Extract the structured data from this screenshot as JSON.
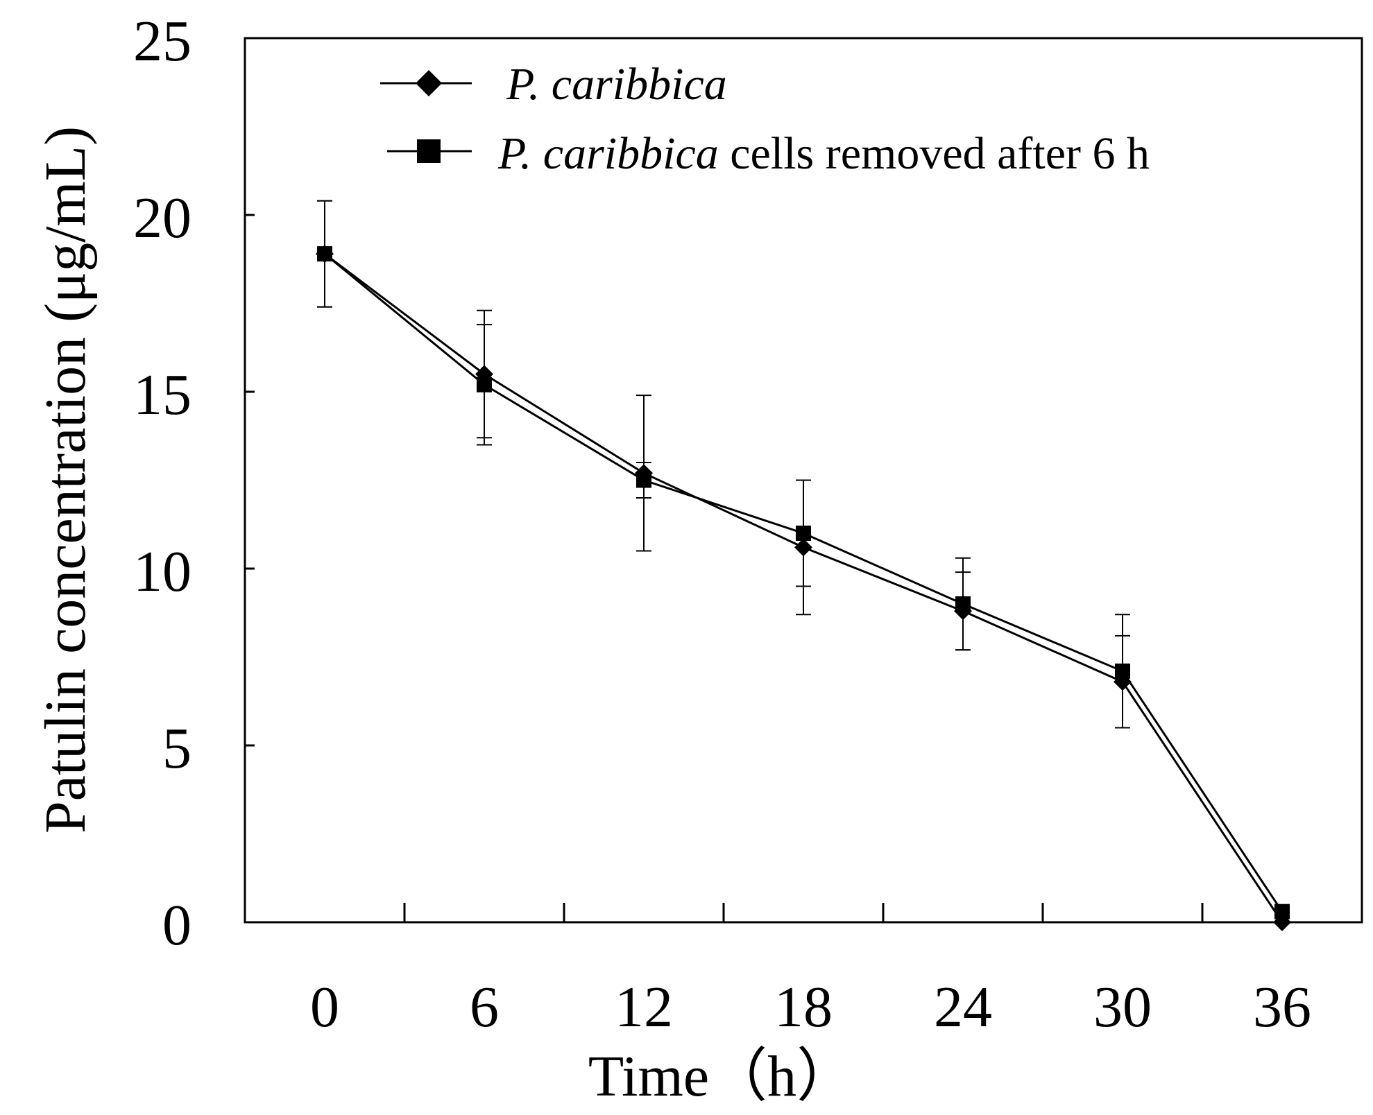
{
  "chart_data": {
    "type": "line",
    "xlabel": "Time（h）",
    "ylabel": "Patulin concentration (μg/mL)",
    "x": [
      0,
      6,
      12,
      18,
      24,
      30,
      36
    ],
    "xticks": [
      "0",
      "6",
      "12",
      "18",
      "24",
      "30",
      "36"
    ],
    "yticks": [
      "0",
      "5",
      "10",
      "15",
      "20",
      "25"
    ],
    "xlim": [
      -3,
      39
    ],
    "ylim": [
      0,
      25
    ],
    "legend_position": "top-right",
    "series": [
      {
        "name": "P. caribbica",
        "name_italic": "P. caribbica",
        "name_suffix": "",
        "marker": "diamond",
        "values": [
          18.9,
          15.5,
          12.7,
          10.6,
          8.8,
          6.8,
          0.0
        ],
        "errors": [
          1.5,
          1.8,
          2.2,
          1.9,
          1.1,
          1.3,
          0.0
        ]
      },
      {
        "name": "P. caribbica cells removed after 6 h",
        "name_italic": "P. caribbica",
        "name_suffix": " cells removed after 6 h",
        "marker": "square",
        "values": [
          18.9,
          15.2,
          12.5,
          11.0,
          9.0,
          7.1,
          0.3
        ],
        "errors": [
          1.5,
          1.7,
          0.5,
          1.5,
          1.3,
          1.6,
          0.0
        ]
      }
    ]
  }
}
